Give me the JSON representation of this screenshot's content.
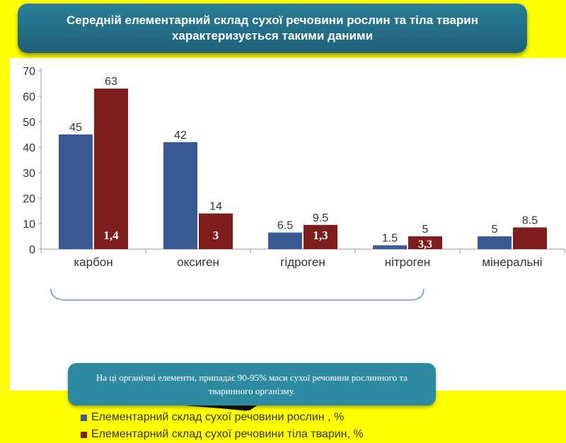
{
  "title": {
    "line1": "Середній елементарний склад сухої речовини рослин та тіла тварин",
    "line2": "характеризується такими даними"
  },
  "note": "На ці органічні елементи, припадає 90-95% маси сухої речовини рослинного та тваринного організму.",
  "chart_data": {
    "type": "bar",
    "categories": [
      "карбон",
      "оксиген",
      "гідроген",
      "нітроген",
      "мінеральні"
    ],
    "ylim": [
      0,
      70
    ],
    "yticks": [
      0,
      10,
      20,
      30,
      40,
      50,
      60,
      70
    ],
    "grid": false,
    "legend_position": "bottom",
    "series": [
      {
        "name": "Елементарний склад сухої речовини рослин , %",
        "color": "#3a5a94",
        "values": [
          45,
          42,
          6.5,
          1.5,
          5
        ],
        "labels": [
          "45",
          "42",
          "6.5",
          "1.5",
          "5"
        ]
      },
      {
        "name": "Елементарний склад сухої речовини тіла тварин, %",
        "color": "#7f1c1c",
        "values": [
          63,
          14,
          9.5,
          5,
          8.5
        ],
        "labels": [
          "63",
          "14",
          "9.5",
          "5",
          "8.5"
        ]
      }
    ],
    "annotations_in_bar": [
      "1,4",
      "3",
      "1,3",
      "3,3",
      ""
    ]
  }
}
